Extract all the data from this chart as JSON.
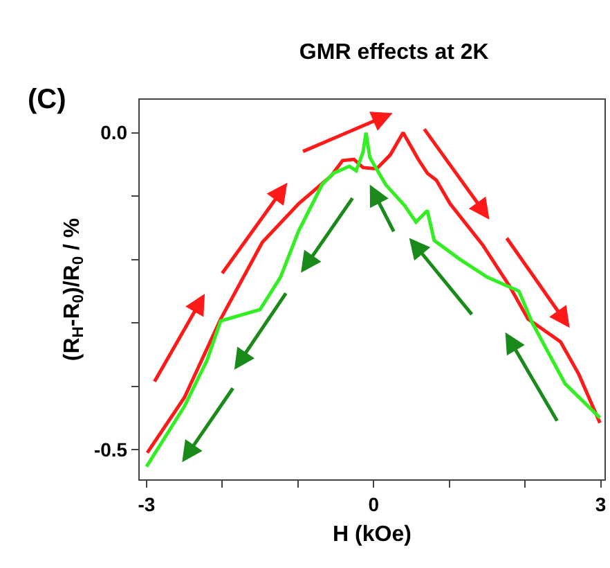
{
  "chart_data": {
    "type": "line",
    "title": "GMR effects at 2K",
    "xlabel": "H (kOe)",
    "ylabel": "(R$_{H}$-R$_{0}$)/R$_{0}$ / %",
    "annotations": [
      "(C)"
    ],
    "xlim": [
      -3.09,
      3.05
    ],
    "ylim": [
      -0.547,
      0.052
    ],
    "xticks": [
      -3,
      {
        "value": -2,
        "label": null
      },
      {
        "value": -1,
        "label": null
      },
      0,
      {
        "value": 1,
        "label": null
      },
      {
        "value": 2,
        "label": null
      },
      3
    ],
    "yticks": [
      {
        "value": -0.5,
        "label": "-0.5"
      },
      {
        "value": -0.4,
        "label": null
      },
      {
        "value": -0.3,
        "label": null
      },
      {
        "value": -0.2,
        "label": null
      },
      {
        "value": -0.1,
        "label": null
      },
      {
        "value": 0,
        "label": "0.0"
      }
    ],
    "marker": "none",
    "line_style": "solid",
    "series": [
      {
        "color": "#ff1a1a",
        "x": [
          -2.99,
          -2.5,
          -2.02,
          -1.47,
          -0.99,
          -0.56,
          -0.41,
          -0.26,
          -0.14,
          0.04,
          0.22,
          0.39,
          0.59,
          0.71,
          0.83,
          1.01,
          1.44,
          1.8,
          2.04,
          2.47,
          2.71,
          2.99
        ],
        "values": [
          -0.505,
          -0.418,
          -0.294,
          -0.173,
          -0.112,
          -0.068,
          -0.044,
          -0.042,
          -0.055,
          -0.057,
          -0.035,
          0.0,
          -0.042,
          -0.064,
          -0.075,
          -0.112,
          -0.177,
          -0.243,
          -0.294,
          -0.33,
          -0.381,
          -0.458
        ]
      },
      {
        "color": "#33ee22",
        "x": [
          -3.0,
          -2.5,
          -2.2,
          -2.02,
          -1.5,
          -1.23,
          -0.99,
          -0.68,
          -0.53,
          -0.32,
          -0.23,
          -0.14,
          -0.1,
          -0.05,
          0.16,
          0.41,
          0.56,
          0.71,
          0.8,
          1.13,
          1.5,
          1.92,
          2.1,
          2.53,
          2.99
        ],
        "values": [
          -0.527,
          -0.432,
          -0.359,
          -0.297,
          -0.279,
          -0.228,
          -0.155,
          -0.082,
          -0.064,
          -0.053,
          -0.06,
          -0.031,
          0.0,
          -0.039,
          -0.082,
          -0.115,
          -0.141,
          -0.123,
          -0.17,
          -0.199,
          -0.228,
          -0.25,
          -0.301,
          -0.396,
          -0.45
        ]
      }
    ]
  }
}
